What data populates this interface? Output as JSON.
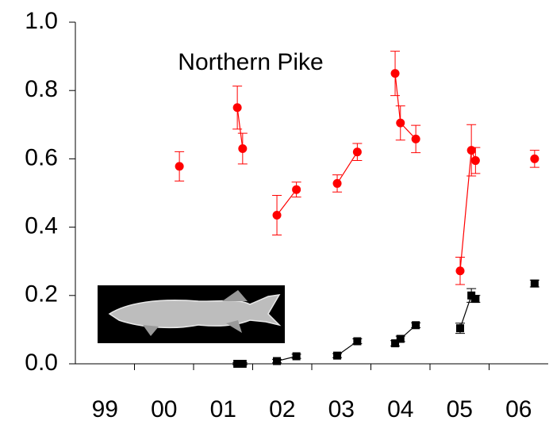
{
  "chart_data": {
    "type": "scatter",
    "title": "Northern Pike",
    "xlim": [
      1999,
      2007
    ],
    "ylim": [
      0,
      1
    ],
    "xticks": [
      {
        "value": 1999.5,
        "label": "99"
      },
      {
        "value": 2000.5,
        "label": "00"
      },
      {
        "value": 2001.5,
        "label": "01"
      },
      {
        "value": 2002.5,
        "label": "02"
      },
      {
        "value": 2003.5,
        "label": "03"
      },
      {
        "value": 2004.5,
        "label": "04"
      },
      {
        "value": 2005.5,
        "label": "05"
      },
      {
        "value": 2006.5,
        "label": "06"
      }
    ],
    "yticks": [
      {
        "value": 0,
        "label": "0.0"
      },
      0.2,
      0.4,
      0.6,
      0.8,
      {
        "value": 1,
        "label": "1.0"
      }
    ],
    "series": [
      {
        "color": "#ff0000",
        "marker": "circle",
        "x": [
          2000.76,
          null,
          2001.74,
          2001.83,
          null,
          2002.41,
          2002.74,
          null,
          2003.43,
          2003.77,
          null,
          2004.41,
          2004.5,
          2004.76,
          null,
          2005.51,
          2005.7,
          2005.77,
          null,
          2006.77
        ],
        "values": [
          0.578,
          null,
          0.75,
          0.63,
          null,
          0.435,
          0.51,
          null,
          0.528,
          0.62,
          null,
          0.85,
          0.705,
          0.658,
          null,
          0.272,
          0.625,
          0.595,
          null,
          0.6
        ],
        "errors": [
          0.043,
          null,
          0.063,
          0.045,
          null,
          0.058,
          0.022,
          null,
          0.025,
          0.025,
          null,
          0.065,
          0.05,
          0.04,
          null,
          0.04,
          0.075,
          0.038,
          null,
          0.025
        ]
      },
      {
        "color": "#000000",
        "marker": "square",
        "x": [
          2001.74,
          2001.83,
          null,
          2002.41,
          2002.74,
          null,
          2003.43,
          2003.77,
          null,
          2004.41,
          2004.5,
          2004.76,
          null,
          2005.51,
          2005.7,
          2005.77,
          null,
          2006.77
        ],
        "values": [
          0.0,
          0.0,
          null,
          0.008,
          0.022,
          null,
          0.024,
          0.066,
          null,
          0.06,
          0.073,
          0.113,
          null,
          0.104,
          0.2,
          0.19,
          null,
          0.235
        ],
        "errors": [
          0.003,
          0.003,
          null,
          0.005,
          0.006,
          null,
          0.006,
          0.007,
          null,
          0.008,
          0.008,
          0.007,
          null,
          0.015,
          0.02,
          0.01,
          null,
          0.01
        ]
      }
    ]
  }
}
